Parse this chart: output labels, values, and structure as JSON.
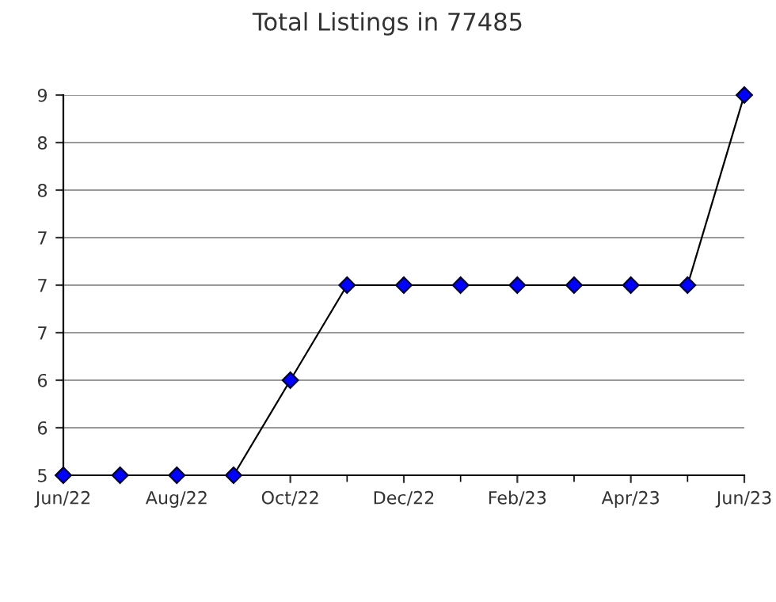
{
  "chart_data": {
    "type": "line",
    "title": "Total Listings in 77485",
    "categories": [
      "Jun/22",
      null,
      "Aug/22",
      null,
      "Oct/22",
      null,
      "Dec/22",
      null,
      "Feb/23",
      null,
      "Apr/23",
      null,
      "Jun/23"
    ],
    "series": [
      {
        "color": "#0000ff",
        "values": [
          5,
          5,
          5,
          5,
          6,
          7,
          7,
          7,
          7,
          7,
          7,
          7,
          9
        ]
      }
    ],
    "ylim": [
      5,
      9
    ],
    "yticks": [
      5,
      {
        "value": 5.5,
        "label": "6"
      },
      6,
      {
        "value": 6.5,
        "label": "7"
      },
      7,
      {
        "value": 7.5,
        "label": "7"
      },
      8,
      {
        "value": 8.5,
        "label": "8"
      },
      9
    ],
    "grid": "y",
    "marker": "diamond",
    "line_style": "solid"
  }
}
